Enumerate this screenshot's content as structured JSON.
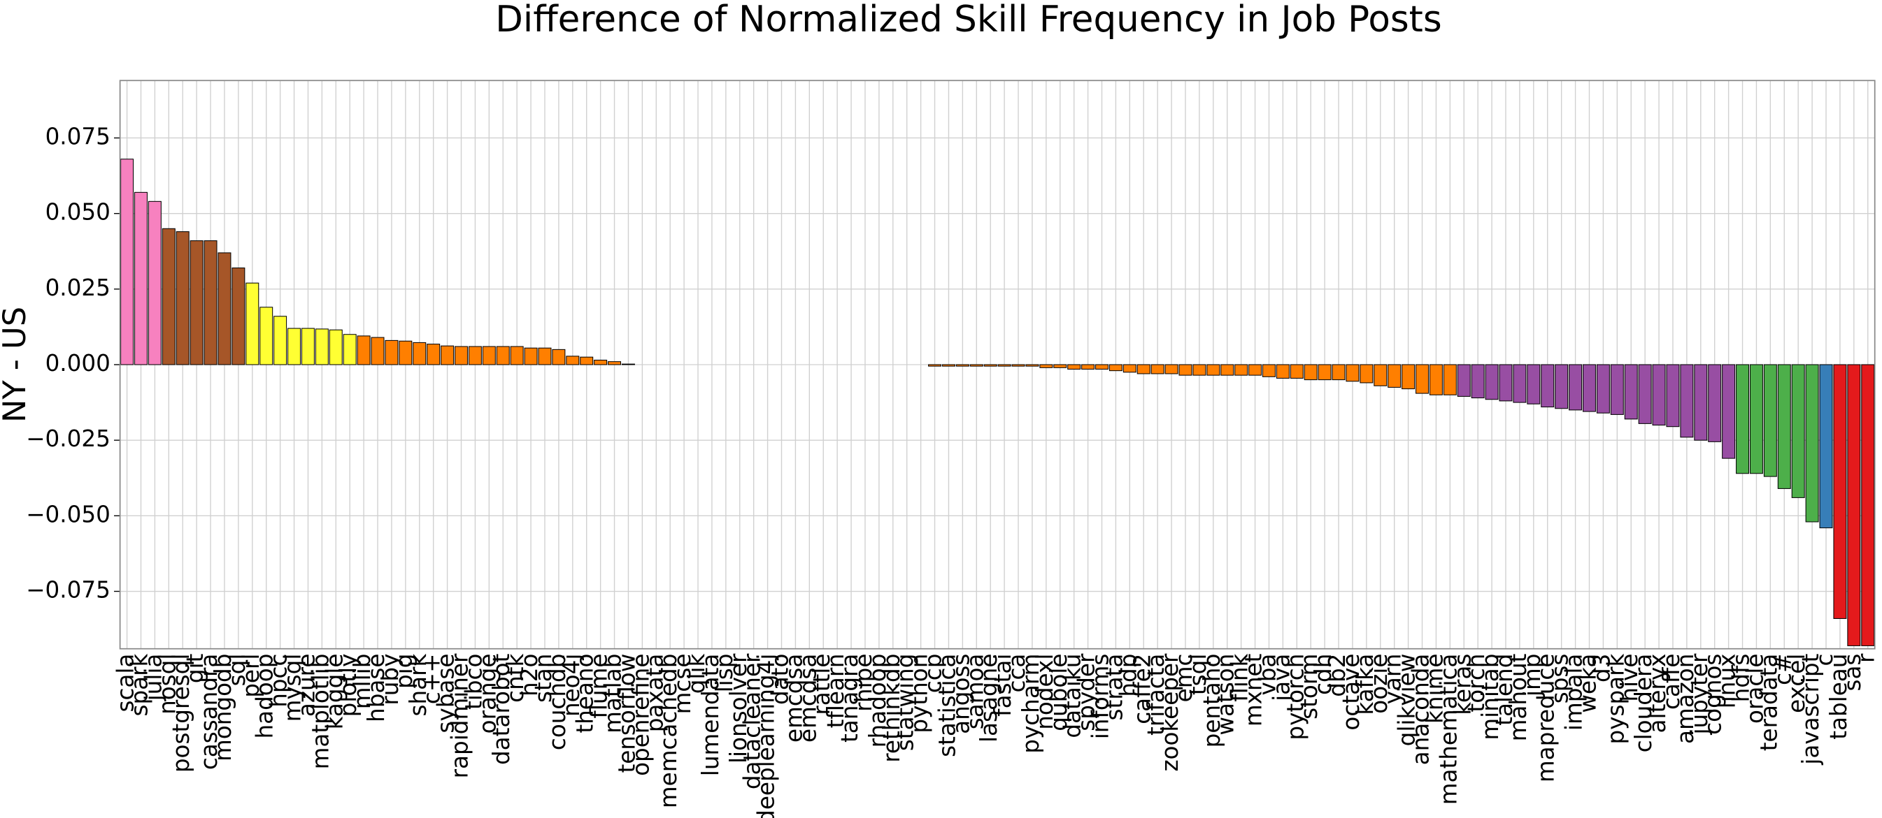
{
  "chart_data": {
    "type": "bar",
    "title": "Difference of Normalized Skill Frequency in Job Posts",
    "y_label": "NY - US",
    "categories": [
      "scala",
      "spark",
      "julia",
      "nosql",
      "postgresql",
      "git",
      "cassandra",
      "mongodb",
      "sql",
      "perl",
      "hadoop",
      "hpcc",
      "mysql",
      "azure",
      "matplotlib",
      "kaggle",
      "plotly",
      "mllib",
      "hbase",
      "ruby",
      "pig",
      "shark",
      "c++",
      "sybase",
      "rapidminer",
      "tibco",
      "orange",
      "datarobot",
      "cntk",
      "h2o",
      "stan",
      "couchdb",
      "neo4j",
      "theano",
      "flume",
      "matlab",
      "tensorflow",
      "openrefine",
      "paxata",
      "memcachedb",
      "mcse",
      "qlik",
      "lumendata",
      "lisp",
      "lionsolver",
      "datacleaner",
      "deeplearning4j",
      "dato",
      "emcdsa",
      "emcdsa",
      "rattle",
      "tflearn",
      "tanagra",
      "rhipe",
      "rhadoop",
      "rethinkdb",
      "statwing",
      "python",
      "ccp",
      "statistica",
      "angoss",
      "samoa",
      "lasagne",
      "fastai",
      "cca",
      "pycharm",
      "nodexl",
      "qubole",
      "dataiku",
      "spyder",
      "informs",
      "strata",
      "hdp",
      "caffe2",
      "trifacta",
      "zookeeper",
      "emc",
      "tsql",
      "pentaho",
      "watson",
      "flink",
      "mxnet",
      "vba",
      "java",
      "pytorch",
      "storm",
      "cdh",
      "db2",
      "octave",
      "kafka",
      "oozie",
      "yarn",
      "qlikview",
      "anaconda",
      "knime",
      "mathematica",
      "keras",
      "torch",
      "minitab",
      "talend",
      "mahout",
      "jmp",
      "mapreduce",
      "spss",
      "impala",
      "weka",
      "d3",
      "pyspark",
      "hive",
      "cloudera",
      "alteryx",
      "caffe",
      "amazon",
      "jupyter",
      "cognos",
      "linux",
      "hdfs",
      "oracle",
      "teradata",
      "c#",
      "excel",
      "javascript",
      "c",
      "tableau",
      "sas",
      "r"
    ],
    "values": [
      0.068,
      0.057,
      0.054,
      0.045,
      0.044,
      0.041,
      0.041,
      0.037,
      0.032,
      0.027,
      0.019,
      0.016,
      0.012,
      0.012,
      0.0118,
      0.0115,
      0.01,
      0.0095,
      0.009,
      0.008,
      0.0078,
      0.0073,
      0.0068,
      0.0062,
      0.006,
      0.006,
      0.006,
      0.006,
      0.006,
      0.0055,
      0.0055,
      0.005,
      0.0028,
      0.0025,
      0.0015,
      0.001,
      0.0002,
      0,
      0,
      0,
      0,
      0,
      0,
      0,
      0,
      0,
      0,
      0,
      0,
      0,
      0,
      0,
      0,
      0,
      0,
      0,
      0,
      0,
      -0.0005,
      -0.0005,
      -0.0005,
      -0.0005,
      -0.0005,
      -0.0005,
      -0.0005,
      -0.0005,
      -0.001,
      -0.001,
      -0.0015,
      -0.0015,
      -0.0015,
      -0.002,
      -0.0025,
      -0.003,
      -0.003,
      -0.003,
      -0.0035,
      -0.0035,
      -0.0035,
      -0.0035,
      -0.0035,
      -0.0035,
      -0.004,
      -0.0045,
      -0.0045,
      -0.005,
      -0.005,
      -0.005,
      -0.0055,
      -0.006,
      -0.007,
      -0.0075,
      -0.008,
      -0.0095,
      -0.01,
      -0.01,
      -0.0105,
      -0.011,
      -0.0115,
      -0.012,
      -0.0125,
      -0.013,
      -0.014,
      -0.0145,
      -0.015,
      -0.0155,
      -0.016,
      -0.0165,
      -0.018,
      -0.0195,
      -0.02,
      -0.0205,
      -0.024,
      -0.025,
      -0.0255,
      -0.031,
      -0.036,
      -0.036,
      -0.037,
      -0.041,
      -0.044,
      -0.052,
      -0.054,
      -0.084,
      -0.093,
      -0.093
    ],
    "colors": [
      "#f781bf",
      "#f781bf",
      "#f781bf",
      "#a65628",
      "#a65628",
      "#a65628",
      "#a65628",
      "#a65628",
      "#a65628",
      "#ffff33",
      "#ffff33",
      "#ffff33",
      "#ffff33",
      "#ffff33",
      "#ffff33",
      "#ffff33",
      "#ffff33",
      "#ff7f00",
      "#ff7f00",
      "#ff7f00",
      "#ff7f00",
      "#ff7f00",
      "#ff7f00",
      "#ff7f00",
      "#ff7f00",
      "#ff7f00",
      "#ff7f00",
      "#ff7f00",
      "#ff7f00",
      "#ff7f00",
      "#ff7f00",
      "#ff7f00",
      "#ff7f00",
      "#ff7f00",
      "#ff7f00",
      "#ff7f00",
      "#ff7f00",
      "#ff7f00",
      "#ff7f00",
      "#ff7f00",
      "#ff7f00",
      "#ff7f00",
      "#ff7f00",
      "#ff7f00",
      "#ff7f00",
      "#ff7f00",
      "#ff7f00",
      "#ff7f00",
      "#ff7f00",
      "#ff7f00",
      "#ff7f00",
      "#ff7f00",
      "#ff7f00",
      "#ff7f00",
      "#ff7f00",
      "#ff7f00",
      "#ff7f00",
      "#ff7f00",
      "#ff7f00",
      "#ff7f00",
      "#ff7f00",
      "#ff7f00",
      "#ff7f00",
      "#ff7f00",
      "#ff7f00",
      "#ff7f00",
      "#ff7f00",
      "#ff7f00",
      "#ff7f00",
      "#ff7f00",
      "#ff7f00",
      "#ff7f00",
      "#ff7f00",
      "#ff7f00",
      "#ff7f00",
      "#ff7f00",
      "#ff7f00",
      "#ff7f00",
      "#ff7f00",
      "#ff7f00",
      "#ff7f00",
      "#ff7f00",
      "#ff7f00",
      "#ff7f00",
      "#ff7f00",
      "#ff7f00",
      "#ff7f00",
      "#ff7f00",
      "#ff7f00",
      "#ff7f00",
      "#ff7f00",
      "#ff7f00",
      "#ff7f00",
      "#ff7f00",
      "#ff7f00",
      "#ff7f00",
      "#984ea3",
      "#984ea3",
      "#984ea3",
      "#984ea3",
      "#984ea3",
      "#984ea3",
      "#984ea3",
      "#984ea3",
      "#984ea3",
      "#984ea3",
      "#984ea3",
      "#984ea3",
      "#984ea3",
      "#984ea3",
      "#984ea3",
      "#984ea3",
      "#984ea3",
      "#984ea3",
      "#984ea3",
      "#984ea3",
      "#4daf4a",
      "#4daf4a",
      "#4daf4a",
      "#4daf4a",
      "#4daf4a",
      "#4daf4a",
      "#377eb8",
      "#e41a1c",
      "#e41a1c",
      "#e41a1c"
    ],
    "ylim": [
      -0.094,
      0.094
    ],
    "yticks": [
      {
        "value": -0.075,
        "label": "−0.075"
      },
      {
        "value": -0.05,
        "label": "−0.050"
      },
      {
        "value": -0.025,
        "label": "−0.025"
      },
      {
        "value": 0,
        "label": "0.000"
      },
      0.025,
      {
        "value": 0.05,
        "label": "0.050"
      },
      0.075
    ],
    "grid": true
  }
}
